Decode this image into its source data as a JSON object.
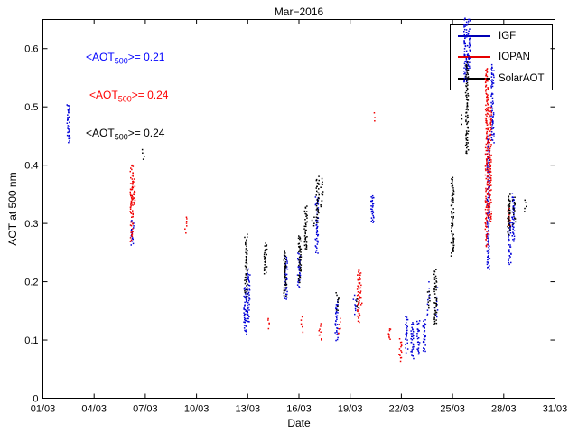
{
  "title": "Mar−2016",
  "xlabel": "Date",
  "ylabel": "AOT at 500 nm",
  "x_ticks": [
    "01/03",
    "04/03",
    "07/03",
    "10/03",
    "13/03",
    "16/03",
    "19/03",
    "22/03",
    "25/03",
    "28/03",
    "31/03"
  ],
  "y_ticks": [
    "0",
    "0.1",
    "0.2",
    "0.3",
    "0.4",
    "0.5",
    "0.6"
  ],
  "annotations": [
    {
      "prefix": "<AOT",
      "sub": "500",
      "suffix": ">= 0.21",
      "color": "#0000ff"
    },
    {
      "prefix": "<AOT",
      "sub": "500",
      "suffix": ">= 0.24",
      "color": "#ff0000"
    },
    {
      "prefix": "<AOT",
      "sub": "500",
      "suffix": ">= 0.24",
      "color": "#000000"
    }
  ],
  "legend": [
    {
      "label": "IGF",
      "color": "#0000b4"
    },
    {
      "label": "IOPAN",
      "color": "#e60000"
    },
    {
      "label": "SolarAOT",
      "color": "#000000"
    }
  ],
  "chart_data": {
    "type": "scatter",
    "title": "Mar−2016",
    "xlabel": "Date",
    "ylabel": "AOT at 500 nm",
    "xlim": [
      1,
      31
    ],
    "ylim": [
      0,
      0.65
    ],
    "x_tick_days": [
      1,
      4,
      7,
      10,
      13,
      16,
      19,
      22,
      25,
      28,
      31
    ],
    "y_tick_values": [
      0,
      0.1,
      0.2,
      0.3,
      0.4,
      0.5,
      0.6
    ],
    "grid": false,
    "legend_position": "top-right",
    "cluster_format": "[day, aot_min, aot_max, optional_point_count]",
    "series": [
      {
        "name": "IGF",
        "mean_aot_500": 0.21,
        "color": "#0000d8",
        "clusters": [
          [
            2.5,
            0.44,
            0.505
          ],
          [
            6.25,
            0.265,
            0.305
          ],
          [
            12.85,
            0.11,
            0.19
          ],
          [
            13.05,
            0.13,
            0.22
          ],
          [
            15.25,
            0.17,
            0.245
          ],
          [
            16.0,
            0.19,
            0.25
          ],
          [
            17.05,
            0.25,
            0.345
          ],
          [
            18.2,
            0.1,
            0.17
          ],
          [
            19.25,
            0.145,
            0.175,
            8
          ],
          [
            20.3,
            0.3,
            0.35
          ],
          [
            22.3,
            0.08,
            0.14
          ],
          [
            22.65,
            0.07,
            0.13
          ],
          [
            23.0,
            0.075,
            0.135
          ],
          [
            23.35,
            0.08,
            0.135
          ],
          [
            23.6,
            0.14,
            0.2,
            12
          ],
          [
            24.05,
            0.14,
            0.19,
            10
          ],
          [
            25.75,
            0.54,
            0.65
          ],
          [
            25.95,
            0.565,
            0.65
          ],
          [
            27.1,
            0.22,
            0.45
          ],
          [
            27.35,
            0.44,
            0.575
          ],
          [
            28.35,
            0.23,
            0.3
          ],
          [
            28.55,
            0.27,
            0.35
          ]
        ]
      },
      {
        "name": "IOPAN",
        "mean_aot_500": 0.24,
        "color": "#f00000",
        "clusters": [
          [
            6.2,
            0.27,
            0.4
          ],
          [
            6.32,
            0.33,
            0.375
          ],
          [
            9.35,
            0.285,
            0.31,
            8
          ],
          [
            14.25,
            0.115,
            0.135,
            8
          ],
          [
            16.2,
            0.115,
            0.14,
            8
          ],
          [
            17.25,
            0.1,
            0.13,
            10
          ],
          [
            18.35,
            0.11,
            0.135,
            8
          ],
          [
            19.5,
            0.13,
            0.22
          ],
          [
            19.62,
            0.16,
            0.215,
            14
          ],
          [
            20.5,
            0.475,
            0.49,
            3
          ],
          [
            21.3,
            0.1,
            0.12,
            8
          ],
          [
            21.95,
            0.065,
            0.1,
            14
          ],
          [
            27.0,
            0.26,
            0.565
          ],
          [
            27.2,
            0.3,
            0.5
          ],
          [
            28.3,
            0.295,
            0.33,
            12
          ]
        ]
      },
      {
        "name": "SolarAOT",
        "mean_aot_500": 0.24,
        "color": "#000000",
        "clusters": [
          [
            6.9,
            0.41,
            0.425,
            4
          ],
          [
            12.9,
            0.17,
            0.28
          ],
          [
            14.05,
            0.215,
            0.265
          ],
          [
            15.2,
            0.175,
            0.25
          ],
          [
            16.05,
            0.2,
            0.28
          ],
          [
            16.4,
            0.255,
            0.33
          ],
          [
            16.85,
            0.295,
            0.31,
            4
          ],
          [
            17.1,
            0.3,
            0.38
          ],
          [
            17.35,
            0.33,
            0.375,
            14
          ],
          [
            18.25,
            0.15,
            0.18,
            10
          ],
          [
            19.45,
            0.155,
            0.17,
            5
          ],
          [
            23.6,
            0.155,
            0.185,
            8
          ],
          [
            24.0,
            0.125,
            0.22
          ],
          [
            25.0,
            0.245,
            0.38
          ],
          [
            25.55,
            0.47,
            0.485,
            3
          ],
          [
            25.85,
            0.42,
            0.575
          ],
          [
            28.3,
            0.28,
            0.35
          ],
          [
            28.6,
            0.3,
            0.345,
            14
          ],
          [
            29.3,
            0.32,
            0.34,
            5
          ]
        ]
      }
    ]
  }
}
